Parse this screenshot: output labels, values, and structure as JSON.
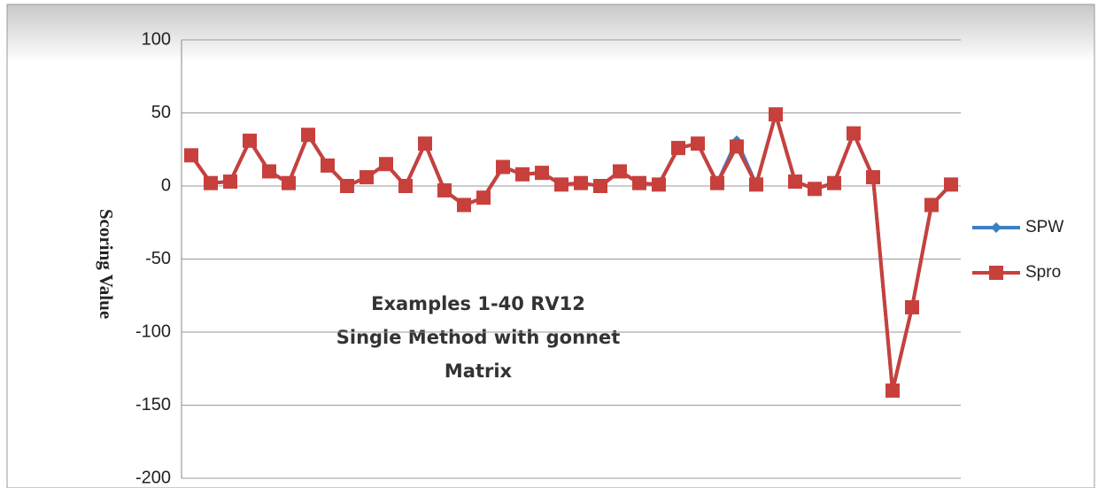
{
  "chart_data": {
    "type": "line",
    "y_label": "Scoring Value",
    "annotation": [
      "Examples 1-40 RV12",
      "Single Method with gonnet",
      "Matrix"
    ],
    "ylim": [
      -200,
      100
    ],
    "yticks": [
      100,
      50,
      0,
      -50,
      -100,
      -150,
      -200
    ],
    "grid": true,
    "legend": "right",
    "series": [
      {
        "name": "SPW",
        "color": "#3c7fc4",
        "marker": "diamond",
        "values": [
          21,
          2,
          3,
          31,
          10,
          2,
          35,
          14,
          0,
          6,
          15,
          0,
          29,
          -3,
          -13,
          -8,
          13,
          8,
          9,
          1,
          2,
          0,
          10,
          2,
          1,
          26,
          29,
          2,
          31,
          1,
          49,
          3,
          -2,
          2,
          36,
          6,
          -140,
          -83,
          -13,
          1
        ]
      },
      {
        "name": "Spro",
        "color": "#c8403c",
        "marker": "square",
        "values": [
          21,
          2,
          3,
          31,
          10,
          2,
          35,
          14,
          0,
          6,
          15,
          0,
          29,
          -3,
          -13,
          -8,
          13,
          8,
          9,
          1,
          2,
          0,
          10,
          2,
          1,
          26,
          29,
          2,
          27,
          1,
          49,
          3,
          -2,
          2,
          36,
          6,
          -140,
          -83,
          -13,
          1
        ]
      }
    ]
  }
}
